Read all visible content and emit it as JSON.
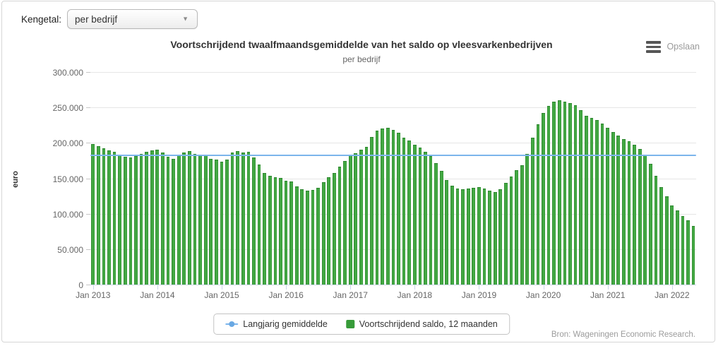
{
  "controls": {
    "label": "Kengetal:",
    "dropdown_value": "per bedrijf"
  },
  "header": {
    "save_label": "Opslaan"
  },
  "source_credit": "Bron: Wageningen Economic Research.",
  "colors": {
    "bar": "#379b39",
    "average_line": "#7cb5ec",
    "grid": "#e6e6e6",
    "axis": "#ccd6eb"
  },
  "chart_data": {
    "type": "bar",
    "title": "Voortschrijdend twaalfmaandsgemiddelde van het saldo op vleesvarkenbedrijven",
    "subtitle": "per bedrijf",
    "ylabel": "euro",
    "ylim": [
      0,
      300000
    ],
    "ytick_labels_bottom_to_top": [
      "0",
      "50.000",
      "100.000",
      "150.000",
      "200.000",
      "250.000",
      "300.000"
    ],
    "xtick_labels": [
      "Jan 2013",
      "Jan 2014",
      "Jan 2015",
      "Jan 2016",
      "Jan 2017",
      "Jan 2018",
      "Jan 2019",
      "Jan 2020",
      "Jan 2021",
      "Jan 2022"
    ],
    "x_frequency": "monthly",
    "x_start": "Jan 2013",
    "grid": true,
    "legend_position": "bottom",
    "series": [
      {
        "name": "Langjarig gemiddelde",
        "type": "line",
        "color": "#7cb5ec",
        "value": 182000
      },
      {
        "name": "Voortschrijdend saldo, 12 maanden",
        "type": "column",
        "color": "#379b39",
        "values": [
          198000,
          195000,
          192000,
          189000,
          187000,
          183000,
          180000,
          179000,
          181000,
          184000,
          187000,
          189000,
          190000,
          186000,
          180000,
          177000,
          183000,
          186000,
          188000,
          184000,
          183000,
          182000,
          177000,
          176000,
          173000,
          176000,
          186000,
          188000,
          186000,
          187000,
          179000,
          169000,
          157000,
          154000,
          152000,
          151000,
          147000,
          146000,
          139000,
          135000,
          133000,
          134000,
          137000,
          145000,
          152000,
          157000,
          166000,
          174000,
          182000,
          185000,
          190000,
          194000,
          208000,
          217000,
          220000,
          221000,
          218000,
          214000,
          207000,
          203000,
          197000,
          193000,
          187000,
          181000,
          171000,
          160000,
          148000,
          140000,
          136000,
          135000,
          136000,
          137000,
          138000,
          136000,
          133000,
          131000,
          135000,
          144000,
          153000,
          161000,
          168000,
          184000,
          207000,
          226000,
          242000,
          252000,
          258000,
          260000,
          258000,
          256000,
          253000,
          246000,
          238000,
          235000,
          232000,
          227000,
          221000,
          215000,
          210000,
          205000,
          202000,
          197000,
          191000,
          183000,
          170000,
          154000,
          138000,
          125000,
          112000,
          105000,
          97000,
          91000,
          83000
        ]
      }
    ]
  }
}
